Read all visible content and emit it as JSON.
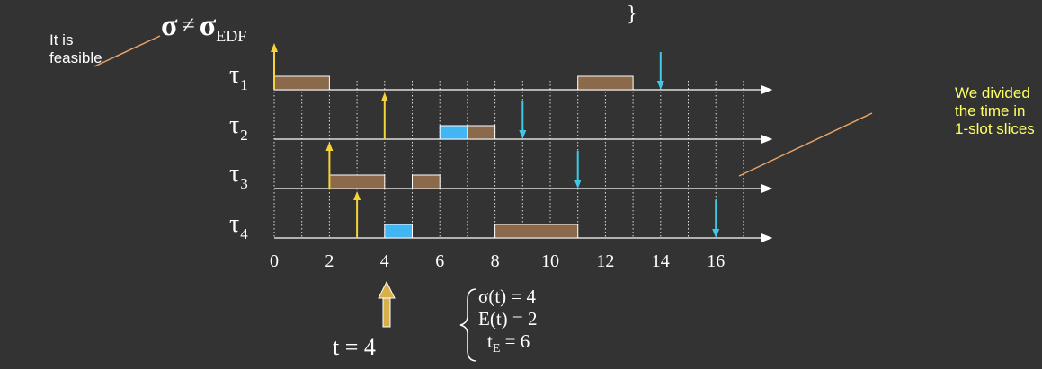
{
  "code_box": {
    "brace": "}"
  },
  "title": {
    "sigma": "σ",
    "neq": "≠",
    "sigma_edf": "σ",
    "edf_sub": "EDF"
  },
  "notes": {
    "left": [
      "It is",
      "feasible"
    ],
    "right": [
      "We divided",
      "the time in",
      "1-slot slices"
    ]
  },
  "tasks": [
    {
      "name": "τ",
      "sub": "1"
    },
    {
      "name": "τ",
      "sub": "2"
    },
    {
      "name": "τ",
      "sub": "3"
    },
    {
      "name": "τ",
      "sub": "4"
    }
  ],
  "axis_ticks": [
    "0",
    "2",
    "4",
    "6",
    "8",
    "10",
    "12",
    "14",
    "16"
  ],
  "time_marker": "t = 4",
  "equations": {
    "sigma": "σ(t) = 4",
    "e": "E(t) = 2",
    "te_main": "t",
    "te_sub": "E",
    "te_val": " = 6"
  },
  "colors": {
    "background": "#333333",
    "execution": "#8b6a4c",
    "highlight": "#41b6f2",
    "arrival": "#f5d33a",
    "deadline": "#41c8e6",
    "note_right": "#ffff66",
    "pointer": "#e8a266"
  },
  "schedule": {
    "arrivals": [
      {
        "task": 1,
        "t": 0
      },
      {
        "task": 2,
        "t": 4
      },
      {
        "task": 3,
        "t": 2
      },
      {
        "task": 4,
        "t": 3
      }
    ],
    "deadlines": [
      {
        "task": 1,
        "t": 14
      },
      {
        "task": 2,
        "t": 9
      },
      {
        "task": 3,
        "t": 11
      },
      {
        "task": 4,
        "t": 16
      }
    ],
    "blocks": [
      {
        "task": 1,
        "start": 0,
        "end": 2,
        "kind": "execution"
      },
      {
        "task": 1,
        "start": 11,
        "end": 13,
        "kind": "execution"
      },
      {
        "task": 2,
        "start": 6,
        "end": 7,
        "kind": "highlight"
      },
      {
        "task": 2,
        "start": 7,
        "end": 8,
        "kind": "execution"
      },
      {
        "task": 3,
        "start": 2,
        "end": 4,
        "kind": "execution"
      },
      {
        "task": 3,
        "start": 5,
        "end": 6,
        "kind": "execution"
      },
      {
        "task": 4,
        "start": 4,
        "end": 5,
        "kind": "highlight"
      },
      {
        "task": 4,
        "start": 8,
        "end": 11,
        "kind": "execution"
      }
    ]
  }
}
